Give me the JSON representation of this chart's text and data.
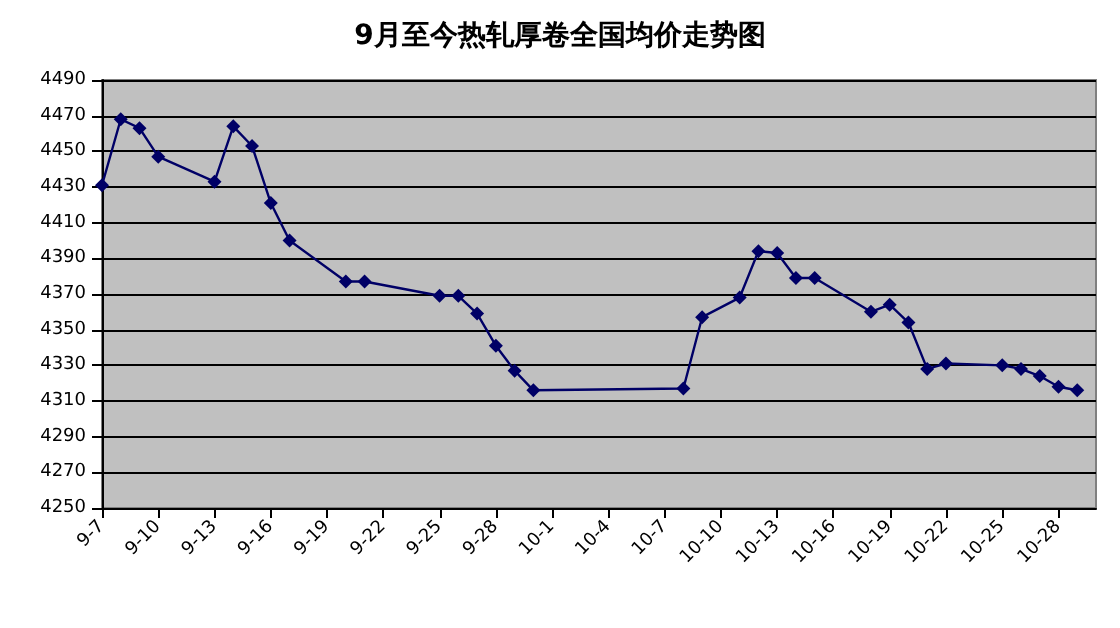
{
  "chart_data": {
    "type": "line",
    "title": "9月至今热轧厚卷全国均价走势图",
    "x": [
      "--09-07",
      "--09-08",
      "--09-09",
      "--09-10",
      "--09-13",
      "--09-14",
      "--09-15",
      "--09-16",
      "--09-17",
      "--09-20",
      "--09-21",
      "--09-25",
      "--09-26",
      "--09-27",
      "--09-28",
      "--09-29",
      "--09-30",
      "--10-08",
      "--10-09",
      "--10-11",
      "--10-12",
      "--10-13",
      "--10-14",
      "--10-15",
      "--10-18",
      "--10-19",
      "--10-20",
      "--10-21",
      "--10-22",
      "--10-25",
      "--10-26",
      "--10-27",
      "--10-28",
      "--10-29"
    ],
    "series": [
      {
        "color": "#000066",
        "values": [
          4431,
          4468,
          4463,
          4447,
          4433,
          4464,
          4453,
          4421,
          4400,
          4377,
          4377,
          4369,
          4369,
          4359,
          4341,
          4327,
          4316,
          4317,
          4357,
          4368,
          4394,
          4393,
          4379,
          4379,
          4360,
          4364,
          4354,
          4328,
          4331,
          4330,
          4328,
          4324,
          4318,
          4316
        ]
      }
    ],
    "xlim": [
      "--09-07",
      "--10-30"
    ],
    "xticks": [
      {
        "value": "--09-07",
        "label": "9-7"
      },
      {
        "value": "--09-10",
        "label": "9-10"
      },
      {
        "value": "--09-13",
        "label": "9-13"
      },
      {
        "value": "--09-16",
        "label": "9-16"
      },
      {
        "value": "--09-19",
        "label": "9-19"
      },
      {
        "value": "--09-22",
        "label": "9-22"
      },
      {
        "value": "--09-25",
        "label": "9-25"
      },
      {
        "value": "--09-28",
        "label": "9-28"
      },
      {
        "value": "--10-01",
        "label": "10-1"
      },
      {
        "value": "--10-04",
        "label": "10-4"
      },
      {
        "value": "--10-07",
        "label": "10-7"
      },
      {
        "value": "--10-10",
        "label": "10-10"
      },
      {
        "value": "--10-13",
        "label": "10-13"
      },
      {
        "value": "--10-16",
        "label": "10-16"
      },
      {
        "value": "--10-19",
        "label": "10-19"
      },
      {
        "value": "--10-22",
        "label": "10-22"
      },
      {
        "value": "--10-25",
        "label": "10-25"
      },
      {
        "value": "--10-28",
        "label": "10-28"
      }
    ],
    "ylim": [
      4250,
      4490
    ],
    "yticks": [
      4250,
      4270,
      4290,
      4310,
      4330,
      4350,
      4370,
      4390,
      4410,
      4430,
      4450,
      4470,
      4490
    ],
    "grid": "y",
    "marker": "diamond",
    "line_style": "solid"
  }
}
